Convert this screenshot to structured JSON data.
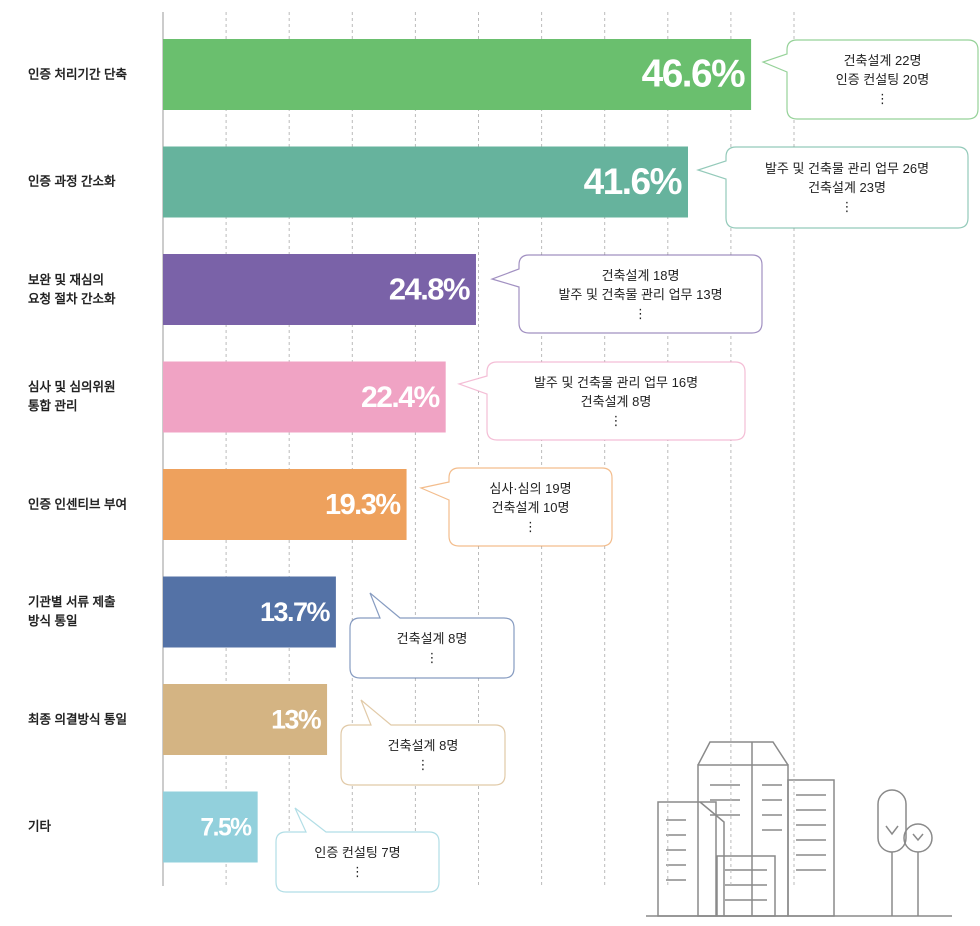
{
  "chart_data": {
    "type": "bar",
    "orientation": "horizontal",
    "categories": [
      "인증 처리기간 단축",
      "인증 과정 간소화",
      "보완 및 재심의\n요청 절차 간소화",
      "심사 및 심의위원\n통합 관리",
      "인증 인센티브 부여",
      "기관별 서류 제출\n방식 통일",
      "최종 의결방식 통일",
      "기타"
    ],
    "values": [
      46.6,
      41.6,
      24.8,
      22.4,
      19.3,
      13.7,
      13,
      7.5
    ],
    "value_labels": [
      "46.6%",
      "41.6%",
      "24.8%",
      "22.4%",
      "19.3%",
      "13.7%",
      "13%",
      "7.5%"
    ],
    "colors": [
      "#6abf6e",
      "#66b39d",
      "#7a62a8",
      "#f0a3c4",
      "#eea15d",
      "#5472a6",
      "#d4b483",
      "#92d0dc"
    ],
    "xlim": [
      0,
      50
    ],
    "xticks": [
      0,
      5,
      10,
      15,
      20,
      25,
      30,
      35,
      40,
      45,
      50
    ],
    "grid": true,
    "annotations": [
      [
        "건축설계 22명",
        "인증 컨설팅 20명",
        "⋮"
      ],
      [
        "발주 및 건축물 관리 업무 26명",
        "건축설계 23명",
        "⋮"
      ],
      [
        "건축설계 18명",
        "발주 및 건축물 관리 업무 13명",
        "⋮"
      ],
      [
        "발주 및 건축물 관리 업무 16명",
        "건축설계 8명",
        "⋮"
      ],
      [
        "심사·심의 19명",
        "건축설계 10명",
        "⋮"
      ],
      [
        "건축설계 8명",
        "⋮"
      ],
      [
        "건축설계 8명",
        "⋮"
      ],
      [
        "인증 컨설팅 7명",
        "⋮"
      ]
    ]
  }
}
